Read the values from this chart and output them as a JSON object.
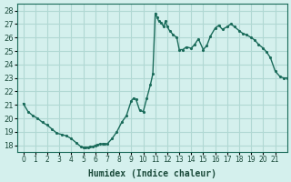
{
  "xlabel": "Humidex (Indice chaleur)",
  "background_color": "#d4f0ed",
  "grid_color": "#b0d8d3",
  "line_color": "#1a6b5a",
  "xlim": [
    -0.5,
    22.0
  ],
  "ylim": [
    17.5,
    28.5
  ],
  "xticks": [
    0,
    1,
    2,
    3,
    4,
    5,
    6,
    7,
    8,
    9,
    10,
    11,
    12,
    13,
    14,
    15,
    16,
    17,
    18,
    19,
    20,
    21
  ],
  "yticks": [
    18,
    19,
    20,
    21,
    22,
    23,
    24,
    25,
    26,
    27,
    28
  ],
  "x": [
    0.0,
    0.4,
    0.8,
    1.2,
    1.6,
    2.0,
    2.4,
    2.8,
    3.2,
    3.6,
    4.0,
    4.4,
    4.8,
    5.0,
    5.2,
    5.4,
    5.6,
    5.8,
    6.0,
    6.2,
    6.4,
    6.6,
    6.8,
    7.0,
    7.4,
    7.8,
    8.2,
    8.6,
    9.0,
    9.2,
    9.4,
    9.7,
    10.0,
    10.3,
    10.6,
    10.8,
    11.0,
    11.15,
    11.3,
    11.5,
    11.7,
    11.85,
    12.0,
    12.2,
    12.5,
    12.8,
    13.0,
    13.3,
    13.6,
    14.0,
    14.3,
    14.6,
    15.0,
    15.3,
    15.6,
    16.0,
    16.3,
    16.6,
    17.0,
    17.3,
    17.6,
    18.0,
    18.3,
    18.6,
    19.0,
    19.3,
    19.6,
    20.0,
    20.3,
    20.6,
    21.0,
    21.4,
    21.7,
    22.0
  ],
  "y": [
    21.1,
    20.5,
    20.2,
    20.0,
    19.7,
    19.5,
    19.2,
    18.9,
    18.8,
    18.7,
    18.5,
    18.2,
    17.9,
    17.85,
    17.85,
    17.85,
    17.9,
    17.9,
    18.0,
    18.05,
    18.1,
    18.1,
    18.1,
    18.1,
    18.5,
    19.0,
    19.7,
    20.2,
    21.3,
    21.5,
    21.4,
    20.6,
    20.5,
    21.5,
    22.5,
    23.3,
    27.8,
    27.5,
    27.2,
    27.1,
    26.8,
    27.2,
    26.8,
    26.5,
    26.2,
    26.0,
    25.1,
    25.1,
    25.3,
    25.2,
    25.5,
    25.9,
    25.1,
    25.4,
    26.1,
    26.7,
    26.9,
    26.6,
    26.8,
    27.0,
    26.8,
    26.5,
    26.3,
    26.2,
    26.0,
    25.8,
    25.5,
    25.2,
    24.9,
    24.5,
    23.5,
    23.1,
    23.0,
    23.0
  ]
}
